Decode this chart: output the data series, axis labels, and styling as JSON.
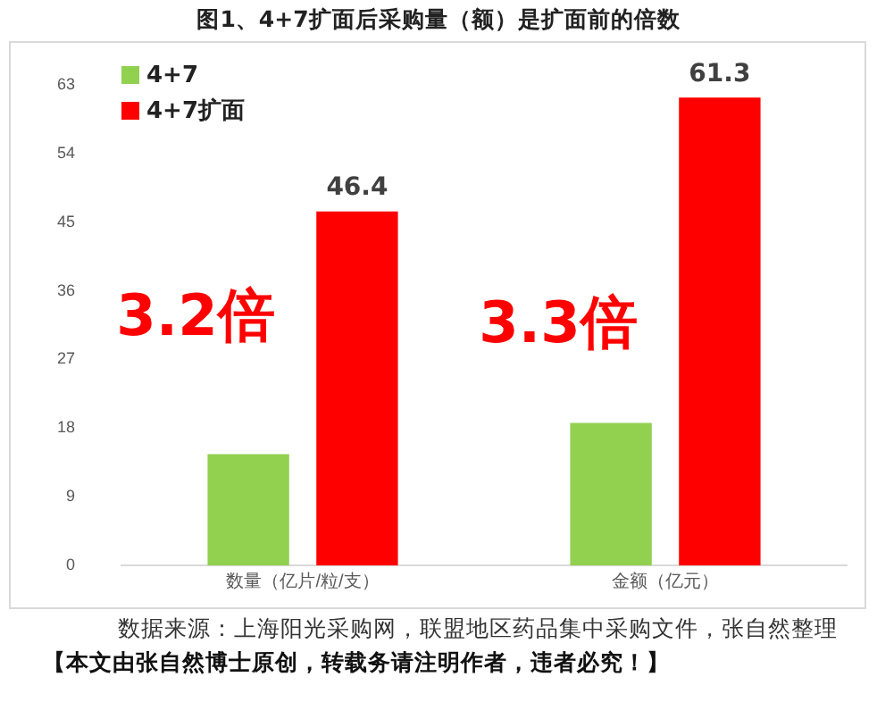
{
  "chart_data": {
    "type": "bar",
    "title": "图1、4+7扩面后采购量（额）是扩面前的倍数",
    "categories": [
      "数量（亿片/粒/支）",
      "金额（亿元）"
    ],
    "series": [
      {
        "name": "4+7",
        "color": "#92d050",
        "values": [
          14.6,
          18.7
        ],
        "value_labels": [
          null,
          null
        ]
      },
      {
        "name": "4+7扩面",
        "color": "#ff0000",
        "values": [
          46.4,
          61.3
        ],
        "value_labels": [
          "46.4",
          "61.3"
        ]
      }
    ],
    "ylim": [
      0,
      63
    ],
    "yticks": [
      0,
      9,
      18,
      27,
      36,
      45,
      54,
      63
    ],
    "grid": false,
    "legend": "top left",
    "annotations": [
      "3.2倍",
      "3.3倍",
      "数据来源：上海阳光采购网，联盟地区药品集中采购文件，张自然整理",
      "【本文由张自然博士原创，转载务请注明作者，违者必究！】"
    ]
  }
}
